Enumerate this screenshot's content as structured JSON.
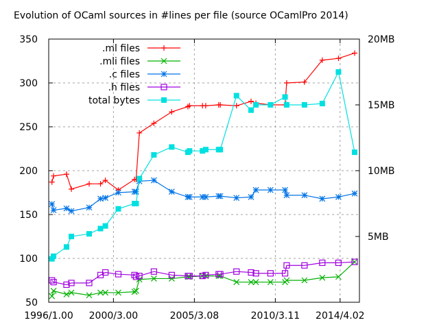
{
  "chart_data": {
    "type": "line",
    "title": "Evolution of OCaml sources in #lines per file (source OCamlPro 2014)",
    "xlabel": "",
    "ylabel": "",
    "y2label": "",
    "x_tick_labels": [
      "1996/1.00",
      "2000/3.00",
      "2005/3.08",
      "2010/3.11",
      "2014/4.02"
    ],
    "x_tick_positions": [
      1996.0,
      2000.0,
      2005.0,
      2010.0,
      2014.0
    ],
    "xlim": [
      1996.0,
      2015.2
    ],
    "ylim": [
      50,
      350
    ],
    "y_ticks": [
      50,
      100,
      150,
      200,
      250,
      300,
      350
    ],
    "y2lim": [
      0,
      20
    ],
    "y2_ticks": [
      5,
      10,
      15,
      20
    ],
    "y2_tick_labels": [
      "5MB",
      "10MB",
      "15MB",
      "20MB"
    ],
    "grid": true,
    "legend_position": "top-left (inside)",
    "x": [
      1996.2,
      1996.3,
      1997.1,
      1997.4,
      1998.5,
      1999.2,
      1999.5,
      2000.3,
      2001.3,
      2001.4,
      2001.6,
      2002.5,
      2003.6,
      2004.6,
      2004.7,
      2005.5,
      2005.7,
      2006.5,
      2006.6,
      2007.6,
      2008.5,
      2008.8,
      2009.7,
      2010.6,
      2010.7,
      2011.8,
      2012.9,
      2013.9,
      2014.9
    ],
    "series": [
      {
        "name": ".ml files",
        "axis": "left",
        "color": "#ff0000",
        "marker": "plus",
        "values": [
          187,
          194,
          196,
          179,
          185,
          185,
          189,
          178,
          190,
          190,
          243,
          254,
          267,
          273,
          274,
          274,
          274,
          275,
          275,
          274,
          279,
          277,
          275,
          275,
          300,
          301,
          326,
          328,
          334
        ]
      },
      {
        "name": ".mli files",
        "axis": "left",
        "color": "#00b000",
        "marker": "x",
        "values": [
          57,
          63,
          59,
          61,
          58,
          61,
          61,
          61,
          62,
          63,
          76,
          77,
          77,
          79,
          79,
          80,
          80,
          80,
          80,
          73,
          73,
          73,
          73,
          73,
          75,
          75,
          78,
          79,
          96
        ]
      },
      {
        "name": ".c files",
        "axis": "left",
        "color": "#0073e6",
        "marker": "star",
        "values": [
          162,
          155,
          157,
          154,
          158,
          168,
          169,
          175,
          176,
          176,
          188,
          189,
          176,
          170,
          170,
          170,
          170,
          171,
          171,
          169,
          170,
          178,
          178,
          178,
          172,
          172,
          168,
          170,
          174
        ]
      },
      {
        "name": ".h files",
        "axis": "left",
        "color": "#a000e0",
        "marker": "square-open",
        "values": [
          75,
          73,
          70,
          72,
          72,
          81,
          84,
          82,
          81,
          79,
          80,
          85,
          81,
          80,
          80,
          80,
          81,
          82,
          82,
          85,
          84,
          83,
          83,
          83,
          92,
          92,
          95,
          95,
          96
        ]
      },
      {
        "name": "total bytes",
        "axis": "right",
        "unit": "MB",
        "color": "#00e0e0",
        "marker": "square-filled",
        "values": [
          3.3,
          3.5,
          4.2,
          5.0,
          5.2,
          5.6,
          5.8,
          7.1,
          7.5,
          7.5,
          9.4,
          11.2,
          11.8,
          11.4,
          11.5,
          11.5,
          11.6,
          11.6,
          11.6,
          15.7,
          14.6,
          15.0,
          15.0,
          15.6,
          15.0,
          15.0,
          15.1,
          17.5,
          11.4
        ]
      }
    ]
  },
  "legend": {
    "items": [
      {
        "label": ".ml files"
      },
      {
        "label": ".mli files"
      },
      {
        "label": ".c files"
      },
      {
        "label": ".h files"
      },
      {
        "label": "total bytes"
      }
    ]
  }
}
